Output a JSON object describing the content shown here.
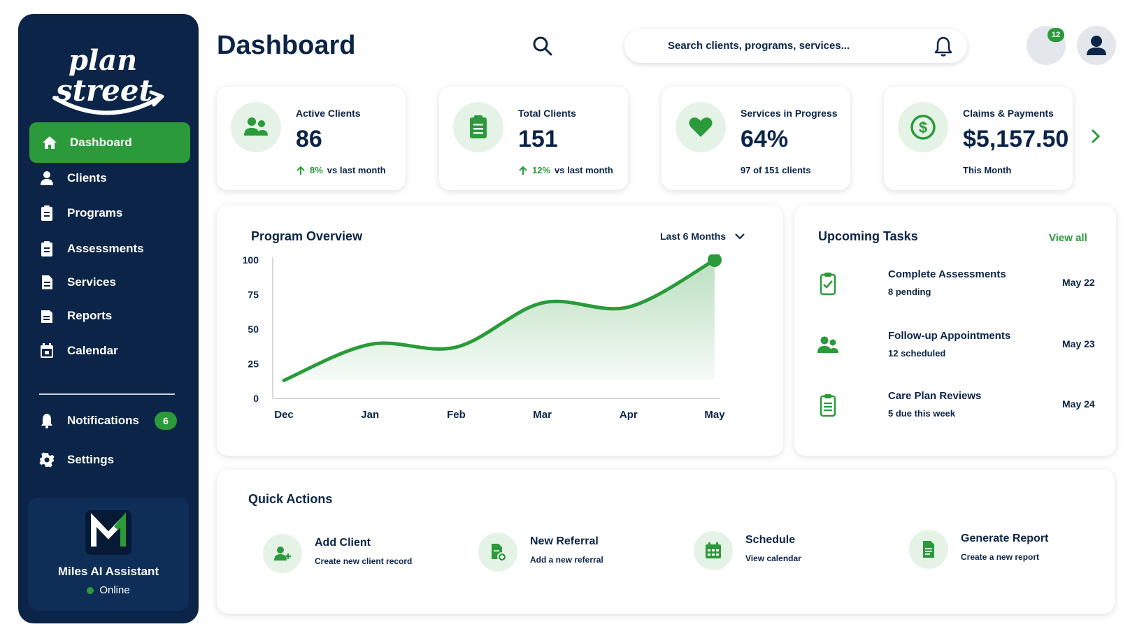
{
  "sidebar": {
    "logo_text": "plan street",
    "active": {
      "label": "Dashboard",
      "icon": "home-icon"
    },
    "items": [
      {
        "label": "Clients",
        "icon": "user-icon"
      },
      {
        "label": "Programs",
        "icon": "clipboard-icon"
      },
      {
        "label": "Assessments",
        "icon": "clipboard-icon"
      },
      {
        "label": "Services",
        "icon": "document-icon"
      },
      {
        "label": "Reports",
        "icon": "report-icon"
      },
      {
        "label": "Calendar",
        "icon": "calendar-icon"
      }
    ],
    "notifications": {
      "label": "Notifications",
      "count": "6"
    },
    "settings": {
      "label": "Settings"
    },
    "assistant": {
      "name": "Miles AI Assistant",
      "status": "Online"
    }
  },
  "header": {
    "title": "Dashboard",
    "search_placeholder": "Search clients, programs, services...",
    "message_count": "12"
  },
  "stats": [
    {
      "label": "Active Clients",
      "value": "86",
      "change": "8%",
      "change_text": "vs last month",
      "icon": "users-icon"
    },
    {
      "label": "Total Clients",
      "value": "151",
      "change": "12%",
      "change_text": "vs last month",
      "icon": "clipboard-icon"
    },
    {
      "label": "Services in Progress",
      "value": "64%",
      "foot": "97 of 151 clients",
      "icon": "heart-icon"
    },
    {
      "label": "Claims & Payments",
      "value": "$5,157.50",
      "foot": "This Month",
      "icon": "dollar-icon"
    }
  ],
  "program_overview": {
    "title": "Program Overview",
    "range": "Last 6 Months"
  },
  "chart_data": {
    "type": "area",
    "categories": [
      "Dec",
      "Jan",
      "Feb",
      "Mar",
      "Apr",
      "May"
    ],
    "series": [
      {
        "values": [
          13,
          39,
          37,
          69,
          66,
          100
        ]
      }
    ],
    "ylim": [
      0,
      100
    ],
    "yticks": [
      0,
      25,
      50,
      75,
      100
    ],
    "grid": false,
    "color": "#2b9a3a"
  },
  "tasks": {
    "title": "Upcoming Tasks",
    "view_all": "View all",
    "items": [
      {
        "title": "Complete Assessments",
        "sub": "8 pending",
        "date": "May 22",
        "icon": "clipboard-check-icon"
      },
      {
        "title": "Follow-up Appointments",
        "sub": "12 scheduled",
        "date": "May 23",
        "icon": "users-icon"
      },
      {
        "title": "Care Plan Reviews",
        "sub": "5 due this week",
        "date": "May 24",
        "icon": "clipboard-list-icon"
      }
    ]
  },
  "quick_actions": {
    "title": "Quick Actions",
    "items": [
      {
        "title": "Add Client",
        "sub": "Create new client record",
        "icon": "user-plus-icon"
      },
      {
        "title": "New Referral",
        "sub": "Add a new referral",
        "icon": "file-plus-icon"
      },
      {
        "title": "Schedule",
        "sub": "View calendar",
        "icon": "calendar-icon"
      },
      {
        "title": "Generate Report",
        "sub": "Create a new report",
        "icon": "report-icon"
      }
    ]
  },
  "colors": {
    "navy": "#0b2447",
    "green": "#2b9a3a",
    "light_green": "#e4f3e6"
  }
}
